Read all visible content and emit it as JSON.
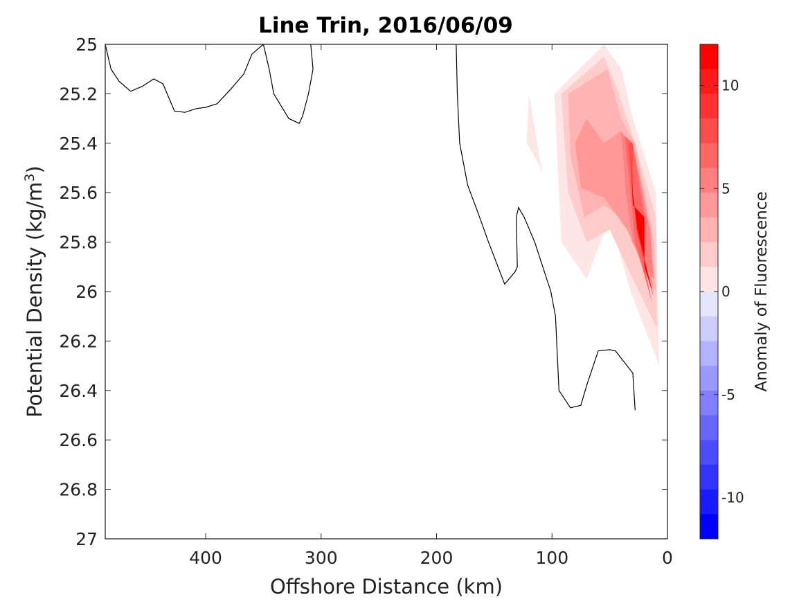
{
  "chart_data": {
    "type": "contour",
    "title": "Line Trin, 2016/06/09",
    "xlabel": "Offshore Distance (km)",
    "ylabel": "Potential Density (kg/m",
    "ylabel_sup": "3",
    "ylabel_end": ")",
    "xlim": [
      487,
      0
    ],
    "ylim": [
      25,
      27
    ],
    "xticks": [
      400,
      300,
      200,
      100,
      0
    ],
    "xtick_labels": [
      "400",
      "300",
      "200",
      "100",
      "0"
    ],
    "yticks": [
      25,
      25.2,
      25.4,
      25.6,
      25.8,
      26,
      26.2,
      26.4,
      26.6,
      26.8,
      27
    ],
    "ytick_labels": [
      "25",
      "25.2",
      "25.4",
      "25.6",
      "25.8",
      "26",
      "26.2",
      "26.4",
      "26.6",
      "26.8",
      "27"
    ],
    "colorbar": {
      "label": "Anomaly of Fluorescence",
      "range": [
        -12,
        12
      ],
      "step": 1.2,
      "ticks": [
        10,
        5,
        0,
        -5,
        -10
      ],
      "tick_labels": [
        "10",
        "5",
        "0",
        "-5",
        "-10"
      ],
      "neg_color": "#0000ff",
      "pos_color": "#ff0000"
    },
    "filled_contours": [
      {
        "name": "anomaly-contour-patch-weak",
        "level": 1.2,
        "points": [
          [
            120,
            25.2
          ],
          [
            111,
            25.45
          ],
          [
            108,
            25.52
          ],
          [
            113,
            25.47
          ],
          [
            122,
            25.4
          ]
        ]
      },
      {
        "name": "anomaly-contour-patch-1",
        "level": 1.2,
        "points": [
          [
            55,
            25.0
          ],
          [
            40,
            25.1
          ],
          [
            30,
            25.3
          ],
          [
            10,
            25.6
          ],
          [
            7,
            26.3
          ],
          [
            32,
            26.0
          ],
          [
            44,
            25.8
          ],
          [
            50,
            25.7
          ],
          [
            70,
            25.95
          ],
          [
            92,
            25.8
          ],
          [
            98,
            25.2
          ]
        ]
      },
      {
        "name": "anomaly-contour-patch-2",
        "level": 2.4,
        "points": [
          [
            55,
            25.05
          ],
          [
            42,
            25.2
          ],
          [
            28,
            25.4
          ],
          [
            10,
            25.7
          ],
          [
            9,
            26.15
          ],
          [
            35,
            25.9
          ],
          [
            50,
            25.75
          ],
          [
            70,
            25.8
          ],
          [
            86,
            25.6
          ],
          [
            92,
            25.2
          ]
        ]
      },
      {
        "name": "anomaly-contour-patch-3",
        "level": 3.6,
        "points": [
          [
            52,
            25.1
          ],
          [
            40,
            25.3
          ],
          [
            28,
            25.4
          ],
          [
            12,
            25.8
          ],
          [
            10,
            26.0
          ],
          [
            40,
            25.7
          ],
          [
            55,
            25.65
          ],
          [
            72,
            25.7
          ],
          [
            84,
            25.45
          ],
          [
            86,
            25.2
          ]
        ]
      },
      {
        "name": "anomaly-contour-patch-4",
        "level": 4.8,
        "points": [
          [
            70,
            25.3
          ],
          [
            55,
            25.4
          ],
          [
            40,
            25.35
          ],
          [
            20,
            25.7
          ],
          [
            12,
            26.0
          ],
          [
            35,
            25.75
          ],
          [
            55,
            25.62
          ],
          [
            75,
            25.58
          ],
          [
            80,
            25.4
          ]
        ]
      },
      {
        "name": "anomaly-contour-patch-5",
        "level": 6.0,
        "points": [
          [
            40,
            25.35
          ],
          [
            28,
            25.45
          ],
          [
            15,
            25.75
          ],
          [
            12,
            25.95
          ],
          [
            30,
            25.8
          ],
          [
            36,
            25.6
          ]
        ]
      },
      {
        "name": "anomaly-contour-patch-6",
        "level": 7.2,
        "points": [
          [
            37,
            25.37
          ],
          [
            30,
            25.4
          ],
          [
            20,
            25.7
          ],
          [
            20,
            25.9
          ],
          [
            13,
            26.05
          ],
          [
            28,
            25.8
          ],
          [
            33,
            25.55
          ]
        ]
      },
      {
        "name": "anomaly-contour-patch-7",
        "level": 8.4,
        "points": [
          [
            34,
            25.4
          ],
          [
            30,
            25.4
          ],
          [
            30,
            25.65
          ],
          [
            20,
            25.7
          ],
          [
            20,
            25.9
          ],
          [
            15,
            26.0
          ],
          [
            27,
            25.75
          ],
          [
            32,
            25.5
          ]
        ]
      },
      {
        "name": "anomaly-contour-patch-8",
        "level": 12.0,
        "points": [
          [
            32,
            25.45
          ],
          [
            30,
            25.65
          ],
          [
            20,
            25.7
          ],
          [
            20,
            25.9
          ],
          [
            12,
            26.02
          ],
          [
            26,
            25.75
          ],
          [
            30,
            25.6
          ]
        ]
      }
    ],
    "zero_contours": [
      {
        "name": "zero-contour-line-top-left",
        "points": [
          [
            487,
            25.0
          ],
          [
            482,
            25.1
          ],
          [
            475,
            25.15
          ],
          [
            465,
            25.19
          ],
          [
            455,
            25.17
          ],
          [
            445,
            25.14
          ],
          [
            437,
            25.16
          ],
          [
            427,
            25.27
          ],
          [
            418,
            25.275
          ],
          [
            408,
            25.26
          ],
          [
            400,
            25.255
          ],
          [
            390,
            25.24
          ],
          [
            378,
            25.18
          ],
          [
            367,
            25.12
          ],
          [
            360,
            25.04
          ],
          [
            355,
            25.02
          ],
          [
            350,
            25.0
          ],
          [
            345,
            25.1
          ],
          [
            341,
            25.2
          ],
          [
            328,
            25.3
          ],
          [
            319,
            25.32
          ],
          [
            316,
            25.29
          ],
          [
            311,
            25.2
          ],
          [
            307,
            25.1
          ],
          [
            309,
            25.0
          ]
        ]
      },
      {
        "name": "zero-contour-line-mid",
        "points": [
          [
            183,
            25.0
          ],
          [
            182,
            25.2
          ],
          [
            180,
            25.4
          ],
          [
            173,
            25.57
          ],
          [
            165,
            25.67
          ],
          [
            155,
            25.8
          ],
          [
            141,
            25.97
          ],
          [
            132,
            25.92
          ],
          [
            130,
            25.9
          ],
          [
            131,
            25.7
          ],
          [
            129,
            25.66
          ],
          [
            124,
            25.7
          ],
          [
            115,
            25.8
          ],
          [
            101,
            26.0
          ],
          [
            97,
            26.1
          ],
          [
            94,
            26.4
          ],
          [
            84,
            26.47
          ],
          [
            75,
            26.46
          ],
          [
            70,
            26.38
          ],
          [
            60,
            26.24
          ],
          [
            50,
            26.235
          ],
          [
            45,
            26.24
          ],
          [
            40,
            26.27
          ],
          [
            30,
            26.33
          ],
          [
            28,
            26.48
          ]
        ]
      }
    ]
  }
}
